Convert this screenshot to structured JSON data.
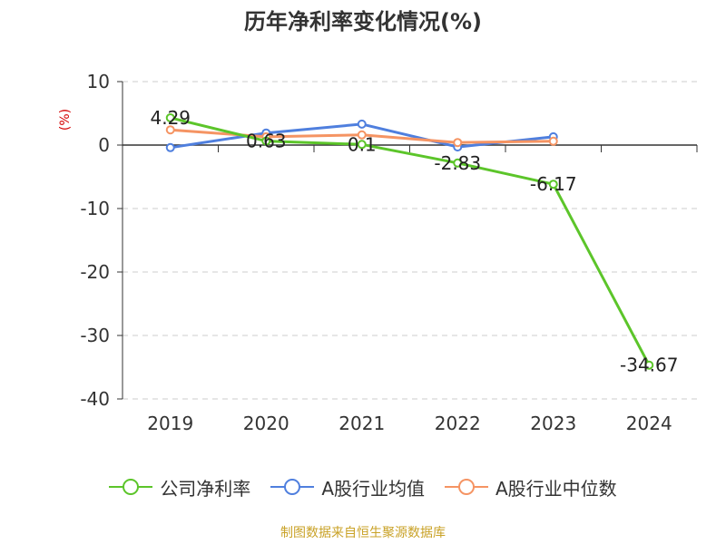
{
  "chart_data": {
    "type": "line",
    "title": "历年净利率变化情况(%)",
    "unit_label": "(%)",
    "categories": [
      "2019",
      "2020",
      "2021",
      "2022",
      "2023",
      "2024"
    ],
    "ylim": [
      -40,
      10
    ],
    "yticks": [
      10,
      0,
      -10,
      -20,
      -30,
      -40
    ],
    "grid": true,
    "legend_position": "bottom",
    "series": [
      {
        "name": "公司净利率",
        "color": "#5cc52a",
        "values": [
          4.29,
          0.63,
          0.1,
          -2.83,
          -6.17,
          -34.67
        ],
        "labels": [
          "4.29",
          "0.63",
          "0.1",
          "-2.83",
          "-6.17",
          "-34.67"
        ]
      },
      {
        "name": "A股行业均值",
        "color": "#4f7fde",
        "values": [
          -0.4,
          1.9,
          3.3,
          -0.3,
          1.3,
          null
        ]
      },
      {
        "name": "A股行业中位数",
        "color": "#f59463",
        "values": [
          2.4,
          1.3,
          1.6,
          0.4,
          0.6,
          null
        ]
      }
    ]
  },
  "source": "制图数据来自恒生聚源数据库"
}
